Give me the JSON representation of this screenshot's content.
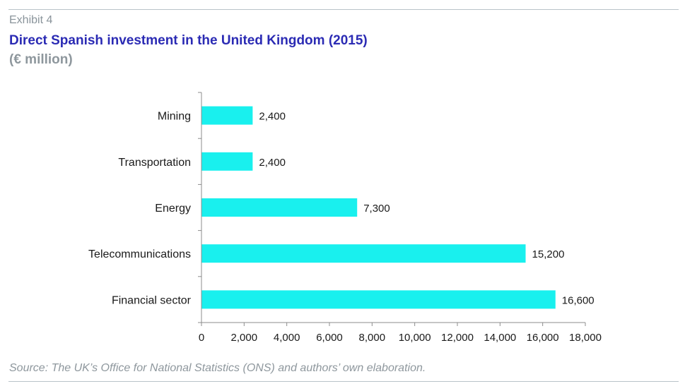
{
  "header": {
    "exhibit": "Exhibit 4",
    "title": "Direct Spanish investment in the United Kingdom (2015)",
    "subtitle": "(€ million)"
  },
  "footer": {
    "source": "Source: The UK’s Office for National Statistics (ONS) and authors’ own elaboration."
  },
  "colors": {
    "bar": "#19f0ee",
    "axis": "#8c8c8c",
    "title": "#2b2bb4"
  },
  "chart_data": {
    "type": "bar",
    "orientation": "horizontal",
    "title": "Direct Spanish investment in the United Kingdom (2015)",
    "subtitle": "(€ million)",
    "xlabel": "",
    "ylabel": "",
    "categories": [
      "Mining",
      "Transportation",
      "Energy",
      "Telecommunications",
      "Financial sector"
    ],
    "values": [
      2400,
      2400,
      7300,
      15200,
      16600
    ],
    "value_labels": [
      "2,400",
      "2,400",
      "7,300",
      "15,200",
      "16,600"
    ],
    "xlim": [
      0,
      18000
    ],
    "x_ticks": [
      0,
      2000,
      4000,
      6000,
      8000,
      10000,
      12000,
      14000,
      16000,
      18000
    ],
    "x_tick_labels": [
      "0",
      "2,000",
      "4,000",
      "6,000",
      "8,000",
      "10,000",
      "12,000",
      "14,000",
      "16,000",
      "18,000"
    ],
    "grid": false,
    "legend": "none"
  }
}
